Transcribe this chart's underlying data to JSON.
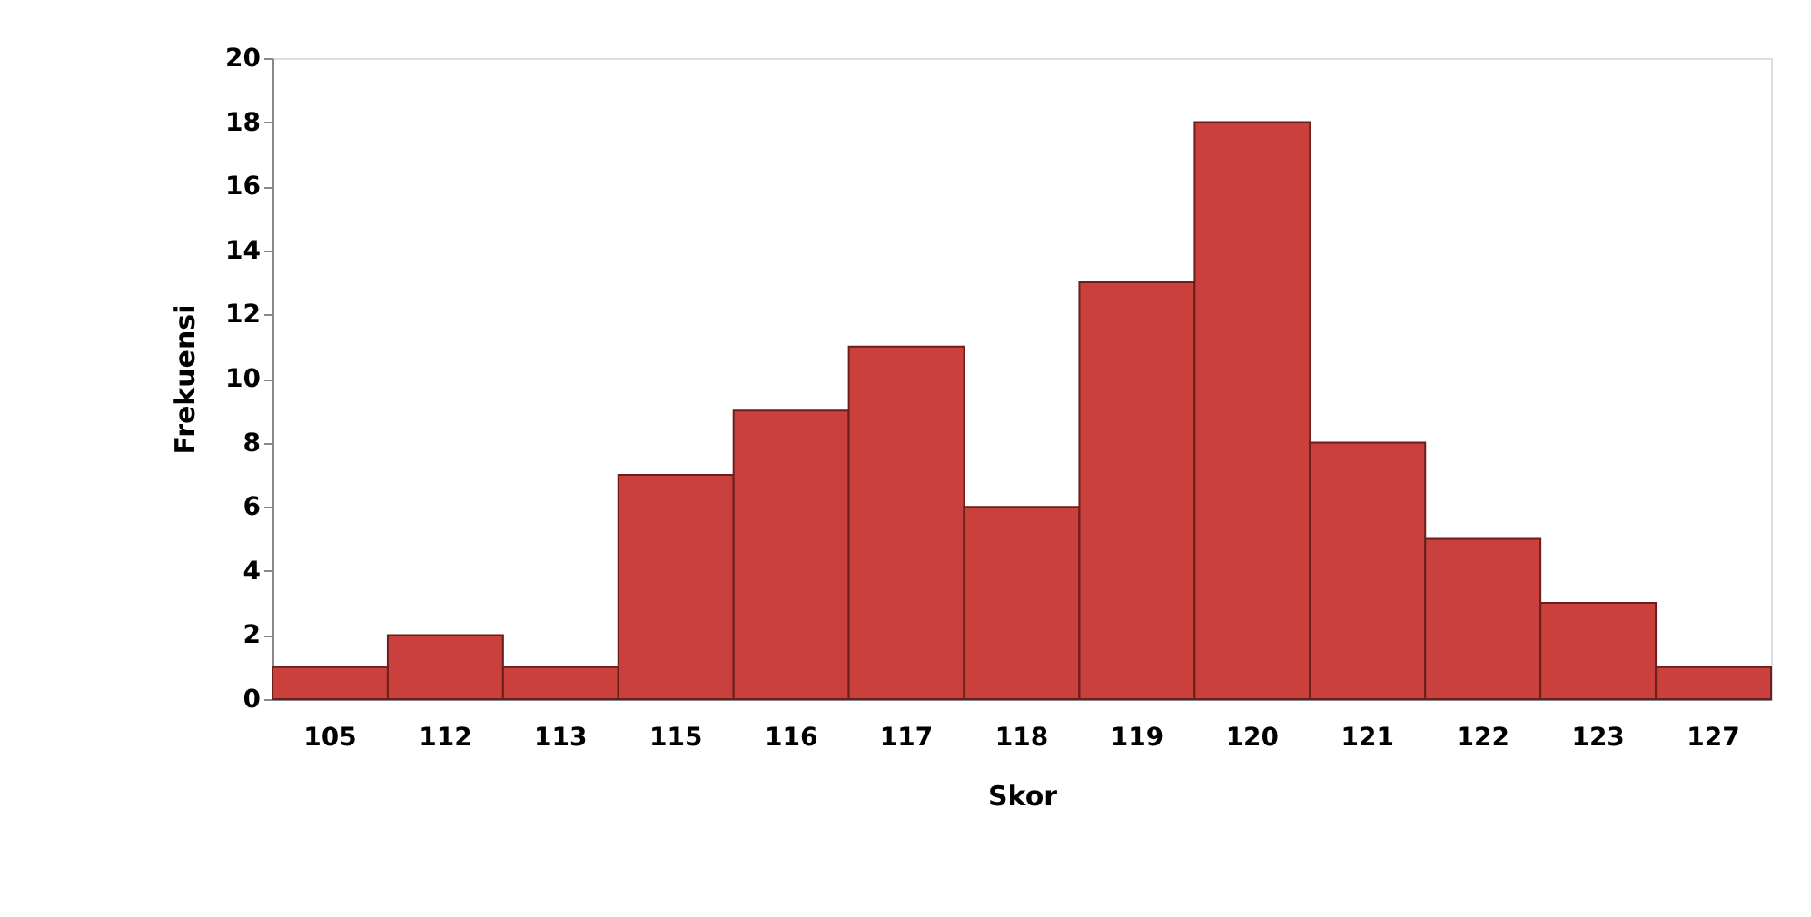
{
  "chart_data": {
    "type": "bar",
    "xlabel": "Skor",
    "ylabel": "Frekuensi",
    "categories": [
      "105",
      "112",
      "113",
      "115",
      "116",
      "117",
      "118",
      "119",
      "120",
      "121",
      "122",
      "123",
      "127"
    ],
    "values": [
      1,
      2,
      1,
      7,
      9,
      11,
      6,
      13,
      18,
      8,
      5,
      3,
      1
    ],
    "color": "#c9403d",
    "ylim": [
      0,
      20
    ],
    "yticks": [
      0,
      2,
      4,
      6,
      8,
      10,
      12,
      14,
      16,
      18,
      20
    ],
    "grid": false
  }
}
